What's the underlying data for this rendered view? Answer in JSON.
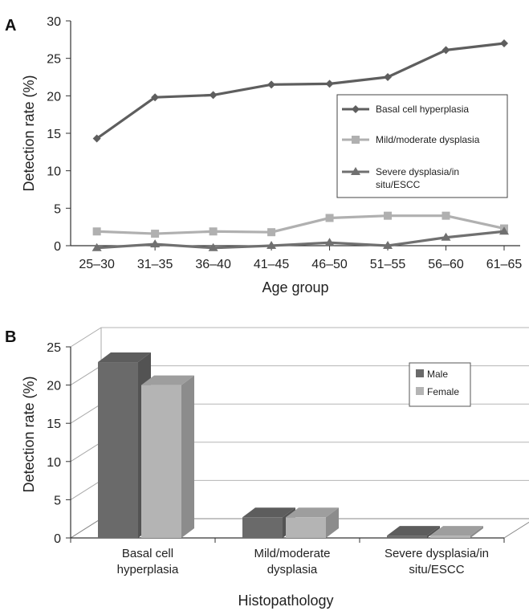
{
  "chart_data": [
    {
      "type": "line",
      "panel": "A",
      "xlabel": "Age group",
      "ylabel": "Detection rate (%)",
      "ylim": [
        0,
        30
      ],
      "yticks": [
        0,
        5,
        10,
        15,
        20,
        25,
        30
      ],
      "categories": [
        "25–30",
        "31–35",
        "36–40",
        "41–45",
        "46–50",
        "51–55",
        "56–60",
        "61–65"
      ],
      "grid": false,
      "legend_position": "right",
      "series": [
        {
          "name": "Basal cell hyperplasia",
          "marker": "diamond",
          "color": "#5e5e5e",
          "values": [
            14.3,
            19.8,
            20.1,
            21.5,
            21.6,
            22.5,
            26.1,
            27.0
          ]
        },
        {
          "name": "Mild/moderate dysplasia",
          "marker": "square",
          "color": "#b0b0b0",
          "values": [
            1.9,
            1.6,
            1.9,
            1.8,
            3.7,
            4.0,
            4.0,
            2.3
          ]
        },
        {
          "name_lines": [
            "Severe dysplasia/in",
            "situ/ESCC"
          ],
          "marker": "triangle",
          "color": "#707070",
          "values": [
            -0.3,
            0.2,
            -0.3,
            0.0,
            0.4,
            0.0,
            1.1,
            1.9
          ]
        }
      ]
    },
    {
      "type": "bar",
      "panel": "B",
      "xlabel": "Histopathology",
      "ylabel": "Detection rate (%)",
      "ylim": [
        0,
        25
      ],
      "yticks": [
        0,
        5,
        10,
        15,
        20,
        25
      ],
      "categories": [
        [
          "Basal cell",
          "hyperplasia"
        ],
        [
          "Mild/moderate",
          "dysplasia"
        ],
        [
          "Severe dysplasia/in",
          "situ/ESCC"
        ]
      ],
      "grid": true,
      "legend_position": "top-right",
      "series": [
        {
          "name": "Male",
          "color": "#6a6a6a",
          "values": [
            23.0,
            2.7,
            0.3
          ]
        },
        {
          "name": "Female",
          "color": "#b4b4b4",
          "values": [
            20.0,
            2.7,
            0.3
          ]
        }
      ]
    }
  ]
}
